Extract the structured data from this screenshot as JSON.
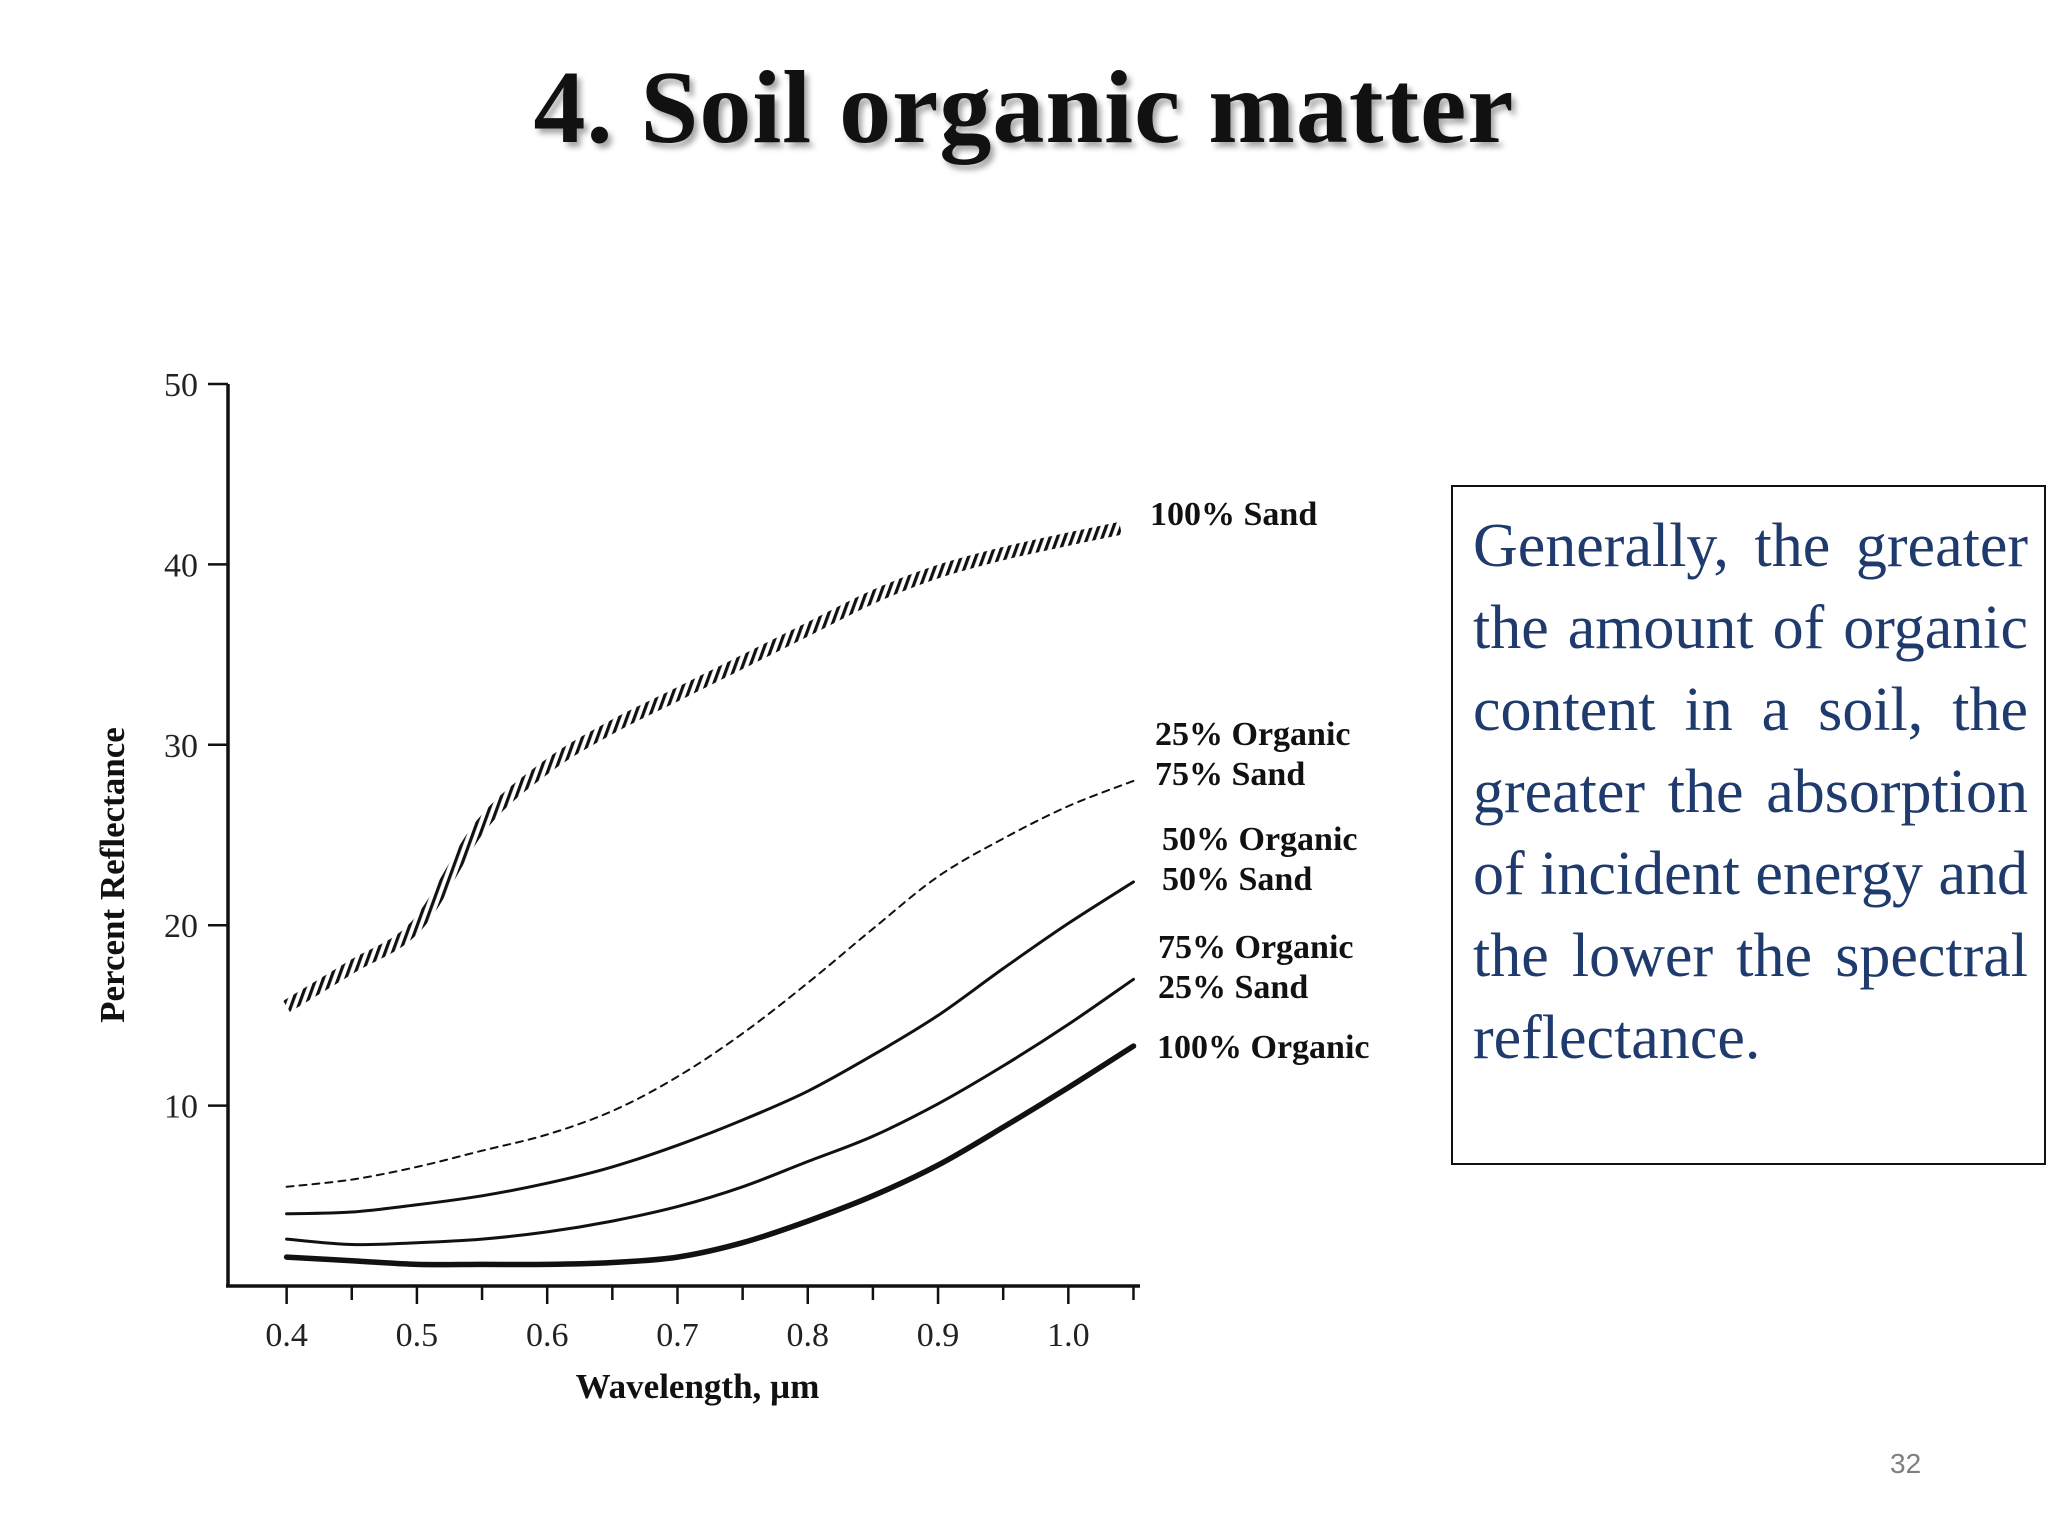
{
  "slide": {
    "title": "4. Soil organic matter",
    "callout_text": "Generally, the greater the amount of organic content in a soil, the greater the absorption of incident energy and the lower the spectral reflectance.",
    "page_number": "32"
  },
  "chart_data": {
    "type": "line",
    "title": "",
    "xlabel": "Wavelength, µm",
    "ylabel": "Percent Reflectance",
    "xlim": [
      0.355,
      1.055
    ],
    "ylim": [
      0,
      50
    ],
    "xticks": [
      0.4,
      0.5,
      0.6,
      0.7,
      0.8,
      0.9,
      1.0
    ],
    "xtick_labels": [
      "0.4",
      "0.5",
      "0.6",
      "0.7",
      "0.8",
      "0.9",
      "1.0"
    ],
    "yticks": [
      10,
      20,
      30,
      40,
      50
    ],
    "ytick_labels": [
      "10",
      "20",
      "30",
      "40",
      "50"
    ],
    "grid": false,
    "legend": "inline labels at right end of each line",
    "series": [
      {
        "label_lines": [
          "100% Sand"
        ],
        "style": "hatched",
        "x": [
          0.4,
          0.45,
          0.5,
          0.55,
          0.6,
          0.65,
          0.7,
          0.75,
          0.8,
          0.85,
          0.9,
          0.95,
          1.0,
          1.04
        ],
        "y": [
          15.5,
          17.7,
          20.0,
          25.6,
          28.8,
          31.0,
          32.8,
          34.6,
          36.4,
          38.2,
          39.6,
          40.6,
          41.4,
          42.0
        ]
      },
      {
        "label_lines": [
          "25% Organic",
          "75% Sand"
        ],
        "style": "dashed",
        "x": [
          0.4,
          0.45,
          0.5,
          0.55,
          0.6,
          0.65,
          0.7,
          0.75,
          0.8,
          0.85,
          0.9,
          0.95,
          1.0,
          1.05
        ],
        "y": [
          5.5,
          5.9,
          6.6,
          7.5,
          8.4,
          9.7,
          11.6,
          14.0,
          16.8,
          19.8,
          22.7,
          24.8,
          26.6,
          28.0
        ]
      },
      {
        "label_lines": [
          "50% Organic",
          "50% Sand"
        ],
        "style": "solid",
        "x": [
          0.4,
          0.45,
          0.5,
          0.55,
          0.6,
          0.65,
          0.7,
          0.75,
          0.8,
          0.85,
          0.9,
          0.95,
          1.0,
          1.05
        ],
        "y": [
          4.0,
          4.1,
          4.5,
          5.0,
          5.7,
          6.6,
          7.8,
          9.2,
          10.8,
          12.8,
          15.0,
          17.6,
          20.1,
          22.4
        ]
      },
      {
        "label_lines": [
          "75% Organic",
          "25% Sand"
        ],
        "style": "solid",
        "x": [
          0.4,
          0.45,
          0.5,
          0.55,
          0.6,
          0.65,
          0.7,
          0.75,
          0.8,
          0.85,
          0.9,
          0.95,
          1.0,
          1.05
        ],
        "y": [
          2.6,
          2.3,
          2.4,
          2.6,
          3.0,
          3.6,
          4.4,
          5.5,
          6.9,
          8.3,
          10.1,
          12.2,
          14.5,
          17.0
        ]
      },
      {
        "label_lines": [
          "100% Organic"
        ],
        "style": "solid-thick",
        "x": [
          0.4,
          0.45,
          0.5,
          0.55,
          0.6,
          0.65,
          0.7,
          0.75,
          0.8,
          0.85,
          0.9,
          0.95,
          1.0,
          1.05
        ],
        "y": [
          1.6,
          1.4,
          1.2,
          1.2,
          1.2,
          1.3,
          1.6,
          2.4,
          3.6,
          5.0,
          6.7,
          8.8,
          11.0,
          13.3
        ]
      }
    ]
  }
}
